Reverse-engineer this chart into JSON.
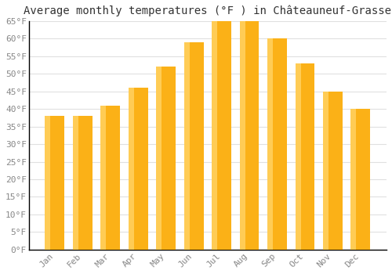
{
  "title": "Average monthly temperatures (°F ) in Châteauneuf-Grasse",
  "months": [
    "Jan",
    "Feb",
    "Mar",
    "Apr",
    "May",
    "Jun",
    "Jul",
    "Aug",
    "Sep",
    "Oct",
    "Nov",
    "Dec"
  ],
  "values": [
    38,
    38,
    41,
    46,
    52,
    59,
    65,
    65,
    60,
    53,
    45,
    40
  ],
  "ylim": [
    0,
    65
  ],
  "yticks": [
    0,
    5,
    10,
    15,
    20,
    25,
    30,
    35,
    40,
    45,
    50,
    55,
    60,
    65
  ],
  "ytick_labels": [
    "0°F",
    "5°F",
    "10°F",
    "15°F",
    "20°F",
    "25°F",
    "30°F",
    "35°F",
    "40°F",
    "45°F",
    "50°F",
    "55°F",
    "60°F",
    "65°F"
  ],
  "bar_color_main": "#FBB117",
  "bar_color_light": "#FFCC55",
  "background_color": "#ffffff",
  "plot_bg_color": "#ffffff",
  "title_fontsize": 10,
  "tick_fontsize": 8,
  "grid_color": "#e0e0e0",
  "axis_color": "#000000",
  "tick_label_color": "#888888"
}
